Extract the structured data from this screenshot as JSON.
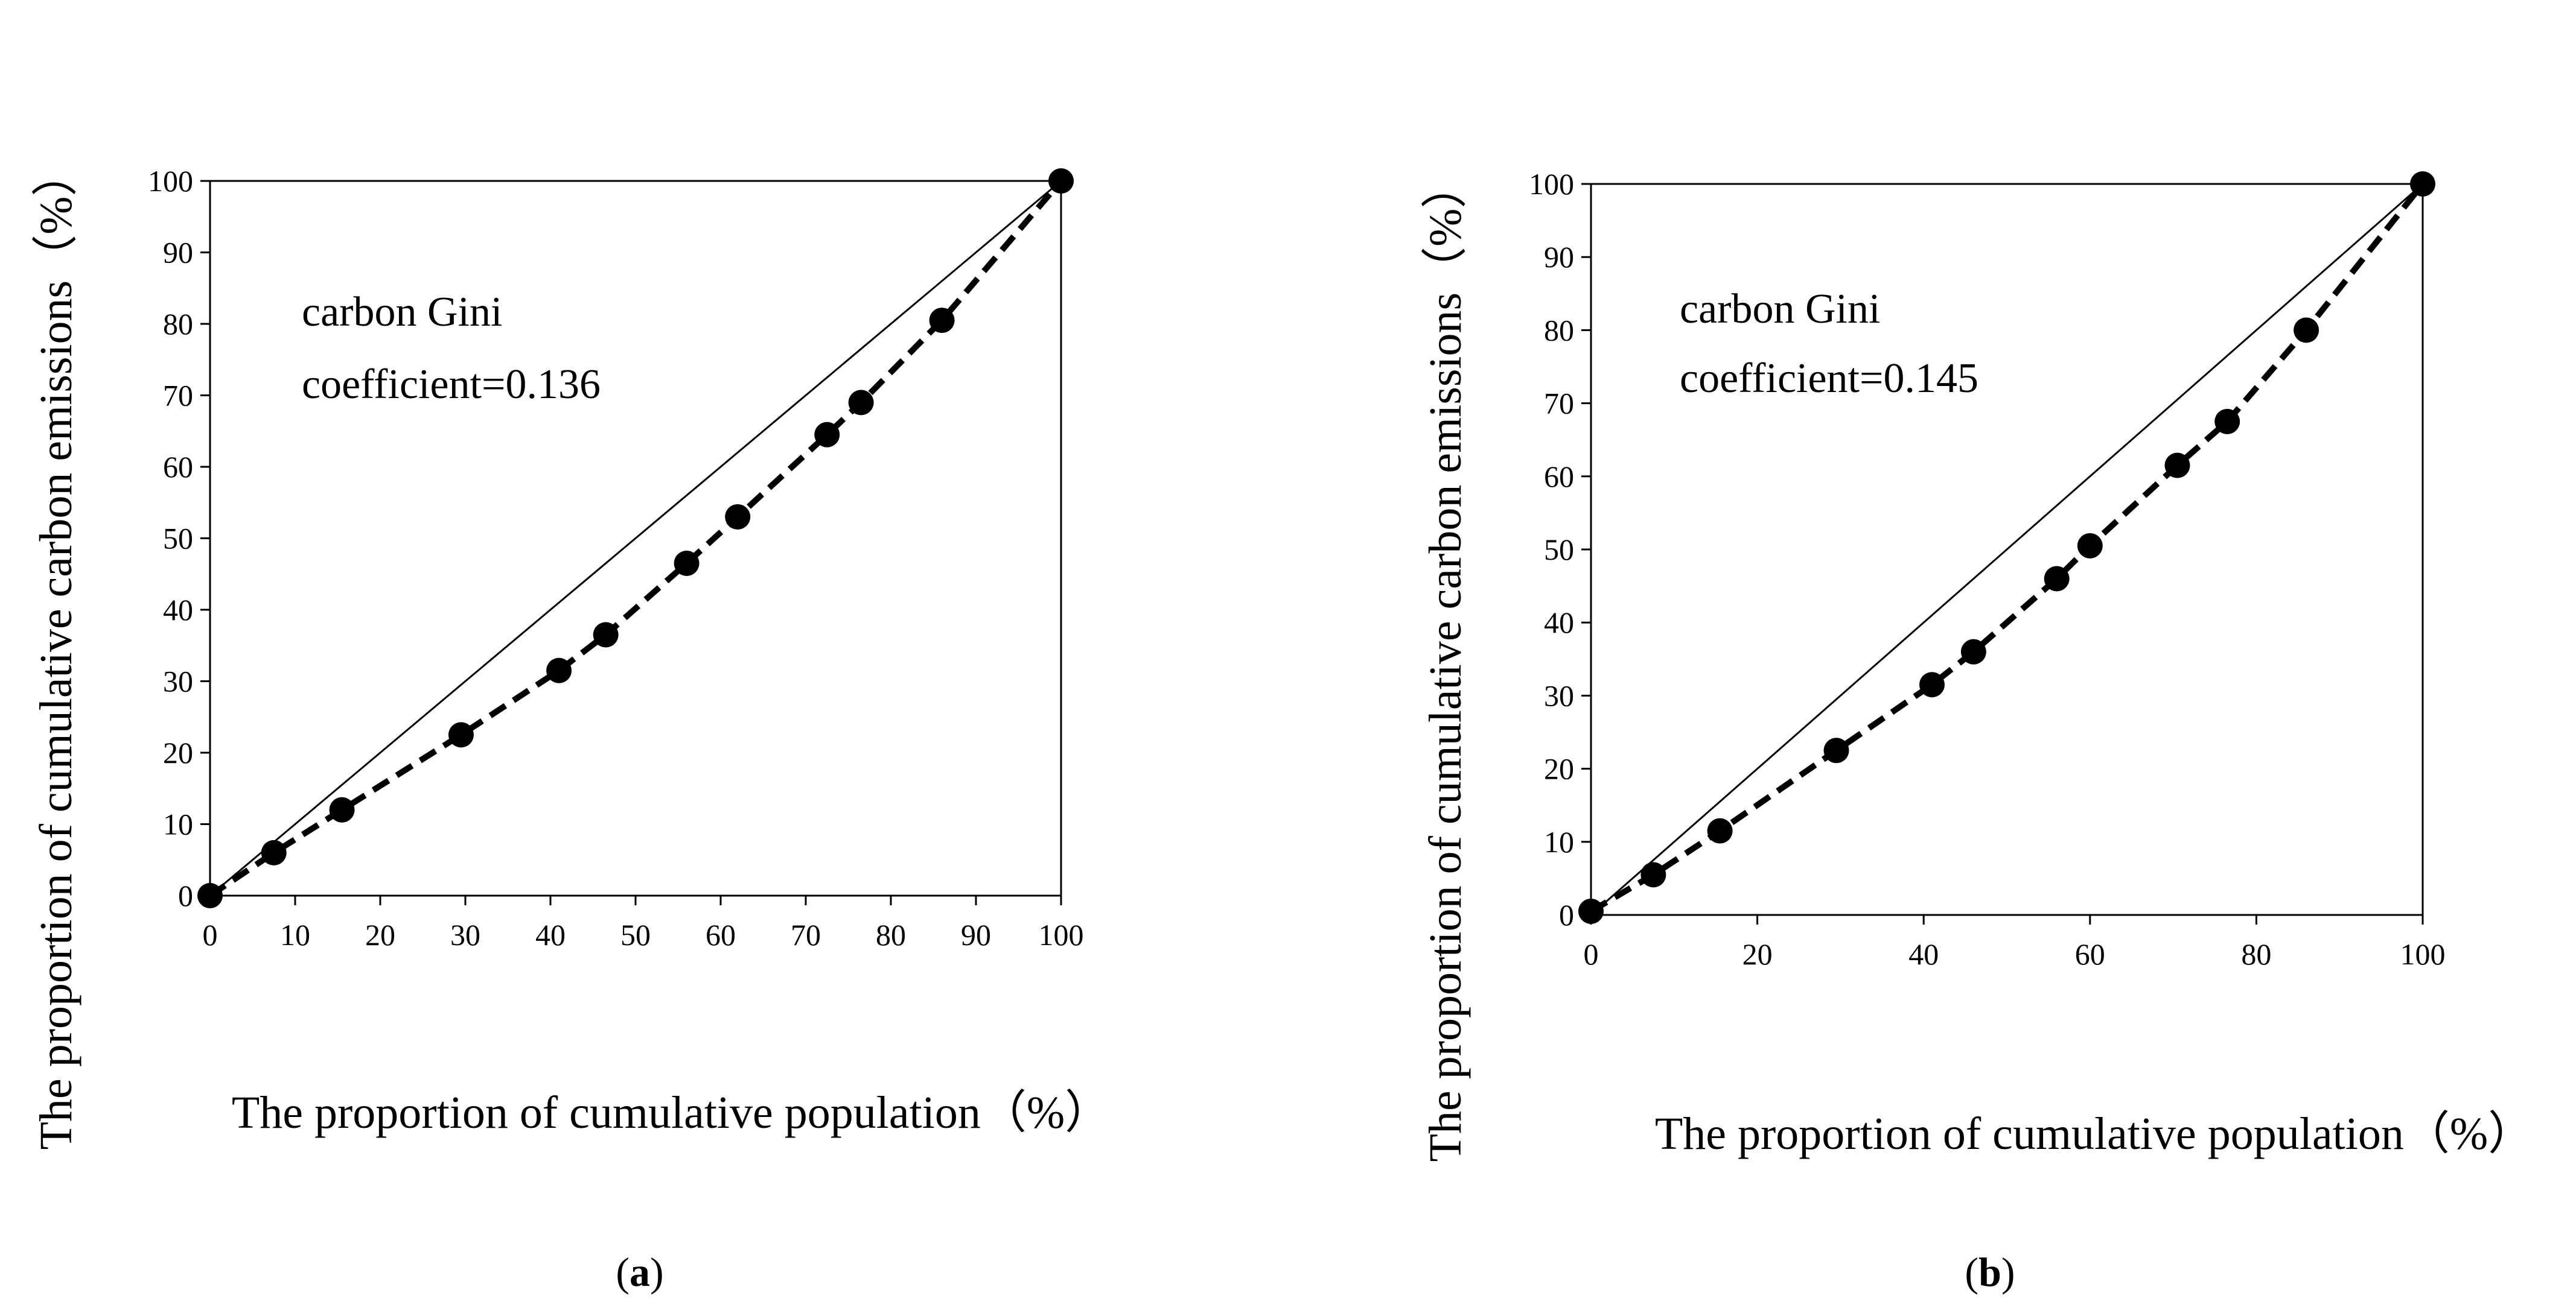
{
  "chart_data": [
    {
      "type": "scatter",
      "panel_label_parts": [
        "(",
        "a",
        ")"
      ],
      "title": "",
      "xlabel": "The proportion of cumulative population（%）",
      "ylabel": "The proportion of cumulative carbon emissions（%）",
      "xlim": [
        0,
        100
      ],
      "ylim": [
        0,
        100
      ],
      "xticks": [
        0,
        10,
        20,
        30,
        40,
        50,
        60,
        70,
        80,
        90,
        100
      ],
      "yticks": [
        0,
        10,
        20,
        30,
        40,
        50,
        60,
        70,
        80,
        90,
        100
      ],
      "annotation_lines": [
        "carbon Gini",
        "coefficient=0.136"
      ],
      "series": [
        {
          "name": "equality line",
          "style": "solid thin line",
          "points": [
            [
              0,
              0
            ],
            [
              100,
              100
            ]
          ]
        },
        {
          "name": "Lorenz curve",
          "style": "dashed line with circle markers",
          "points": [
            [
              0,
              0
            ],
            [
              7.5,
              6
            ],
            [
              15.5,
              12
            ],
            [
              29.5,
              22.5
            ],
            [
              41,
              31.5
            ],
            [
              46.5,
              36.5
            ],
            [
              56,
              46.5
            ],
            [
              62,
              53
            ],
            [
              72.5,
              64.5
            ],
            [
              76.5,
              69
            ],
            [
              86,
              80.5
            ],
            [
              100,
              100
            ]
          ]
        }
      ]
    },
    {
      "type": "scatter",
      "panel_label_parts": [
        "(",
        "b",
        ")"
      ],
      "title": "",
      "xlabel": "The proportion of cumulative population（%）",
      "ylabel": "The proportion of cumulative carbon emissions（%）",
      "xlim": [
        0,
        100
      ],
      "ylim": [
        0,
        100
      ],
      "xticks": [
        0,
        20,
        40,
        60,
        80,
        100
      ],
      "yticks": [
        0,
        10,
        20,
        30,
        40,
        50,
        60,
        70,
        80,
        90,
        100
      ],
      "annotation_lines": [
        "carbon Gini",
        "coefficient=0.145"
      ],
      "series": [
        {
          "name": "equality line",
          "style": "solid thin line",
          "points": [
            [
              0,
              0
            ],
            [
              100,
              100
            ]
          ]
        },
        {
          "name": "Lorenz curve",
          "style": "dashed line with circle markers",
          "points": [
            [
              0,
              0.5
            ],
            [
              7.5,
              5.5
            ],
            [
              15.5,
              11.5
            ],
            [
              29.5,
              22.5
            ],
            [
              41,
              31.5
            ],
            [
              46,
              36
            ],
            [
              56,
              46
            ],
            [
              60,
              50.5
            ],
            [
              70.5,
              61.5
            ],
            [
              76.5,
              67.5
            ],
            [
              86,
              80
            ],
            [
              100,
              100
            ]
          ]
        }
      ]
    }
  ]
}
